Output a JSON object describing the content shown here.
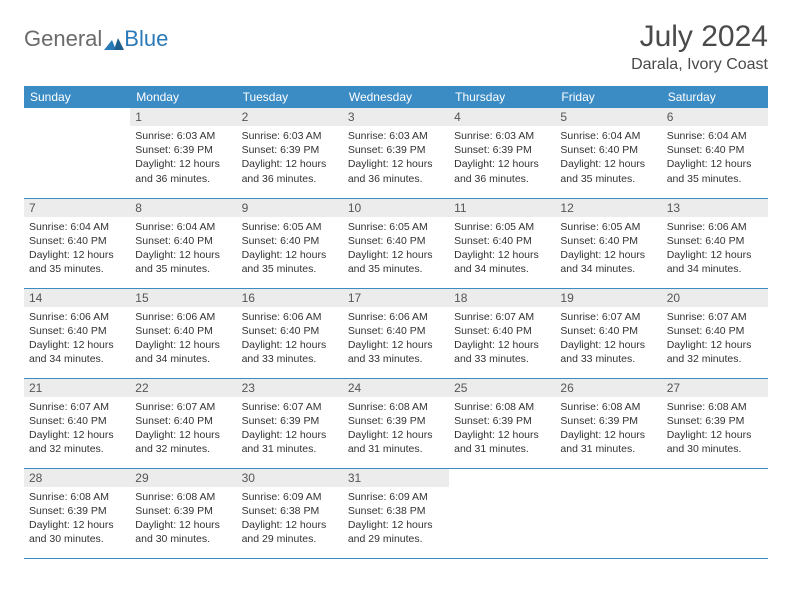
{
  "logo": {
    "text1": "General",
    "text2": "Blue"
  },
  "title": "July 2024",
  "location": "Darala, Ivory Coast",
  "colors": {
    "header_bg": "#3b8bc4",
    "header_text": "#ffffff",
    "daynum_bg": "#ececec",
    "border": "#3b8bc4",
    "logo_gray": "#6b6b6b",
    "logo_blue": "#2a7ab8"
  },
  "weekdays": [
    "Sunday",
    "Monday",
    "Tuesday",
    "Wednesday",
    "Thursday",
    "Friday",
    "Saturday"
  ],
  "weeks": [
    [
      null,
      {
        "d": "1",
        "sr": "Sunrise: 6:03 AM",
        "ss": "Sunset: 6:39 PM",
        "dl1": "Daylight: 12 hours",
        "dl2": "and 36 minutes."
      },
      {
        "d": "2",
        "sr": "Sunrise: 6:03 AM",
        "ss": "Sunset: 6:39 PM",
        "dl1": "Daylight: 12 hours",
        "dl2": "and 36 minutes."
      },
      {
        "d": "3",
        "sr": "Sunrise: 6:03 AM",
        "ss": "Sunset: 6:39 PM",
        "dl1": "Daylight: 12 hours",
        "dl2": "and 36 minutes."
      },
      {
        "d": "4",
        "sr": "Sunrise: 6:03 AM",
        "ss": "Sunset: 6:39 PM",
        "dl1": "Daylight: 12 hours",
        "dl2": "and 36 minutes."
      },
      {
        "d": "5",
        "sr": "Sunrise: 6:04 AM",
        "ss": "Sunset: 6:40 PM",
        "dl1": "Daylight: 12 hours",
        "dl2": "and 35 minutes."
      },
      {
        "d": "6",
        "sr": "Sunrise: 6:04 AM",
        "ss": "Sunset: 6:40 PM",
        "dl1": "Daylight: 12 hours",
        "dl2": "and 35 minutes."
      }
    ],
    [
      {
        "d": "7",
        "sr": "Sunrise: 6:04 AM",
        "ss": "Sunset: 6:40 PM",
        "dl1": "Daylight: 12 hours",
        "dl2": "and 35 minutes."
      },
      {
        "d": "8",
        "sr": "Sunrise: 6:04 AM",
        "ss": "Sunset: 6:40 PM",
        "dl1": "Daylight: 12 hours",
        "dl2": "and 35 minutes."
      },
      {
        "d": "9",
        "sr": "Sunrise: 6:05 AM",
        "ss": "Sunset: 6:40 PM",
        "dl1": "Daylight: 12 hours",
        "dl2": "and 35 minutes."
      },
      {
        "d": "10",
        "sr": "Sunrise: 6:05 AM",
        "ss": "Sunset: 6:40 PM",
        "dl1": "Daylight: 12 hours",
        "dl2": "and 35 minutes."
      },
      {
        "d": "11",
        "sr": "Sunrise: 6:05 AM",
        "ss": "Sunset: 6:40 PM",
        "dl1": "Daylight: 12 hours",
        "dl2": "and 34 minutes."
      },
      {
        "d": "12",
        "sr": "Sunrise: 6:05 AM",
        "ss": "Sunset: 6:40 PM",
        "dl1": "Daylight: 12 hours",
        "dl2": "and 34 minutes."
      },
      {
        "d": "13",
        "sr": "Sunrise: 6:06 AM",
        "ss": "Sunset: 6:40 PM",
        "dl1": "Daylight: 12 hours",
        "dl2": "and 34 minutes."
      }
    ],
    [
      {
        "d": "14",
        "sr": "Sunrise: 6:06 AM",
        "ss": "Sunset: 6:40 PM",
        "dl1": "Daylight: 12 hours",
        "dl2": "and 34 minutes."
      },
      {
        "d": "15",
        "sr": "Sunrise: 6:06 AM",
        "ss": "Sunset: 6:40 PM",
        "dl1": "Daylight: 12 hours",
        "dl2": "and 34 minutes."
      },
      {
        "d": "16",
        "sr": "Sunrise: 6:06 AM",
        "ss": "Sunset: 6:40 PM",
        "dl1": "Daylight: 12 hours",
        "dl2": "and 33 minutes."
      },
      {
        "d": "17",
        "sr": "Sunrise: 6:06 AM",
        "ss": "Sunset: 6:40 PM",
        "dl1": "Daylight: 12 hours",
        "dl2": "and 33 minutes."
      },
      {
        "d": "18",
        "sr": "Sunrise: 6:07 AM",
        "ss": "Sunset: 6:40 PM",
        "dl1": "Daylight: 12 hours",
        "dl2": "and 33 minutes."
      },
      {
        "d": "19",
        "sr": "Sunrise: 6:07 AM",
        "ss": "Sunset: 6:40 PM",
        "dl1": "Daylight: 12 hours",
        "dl2": "and 33 minutes."
      },
      {
        "d": "20",
        "sr": "Sunrise: 6:07 AM",
        "ss": "Sunset: 6:40 PM",
        "dl1": "Daylight: 12 hours",
        "dl2": "and 32 minutes."
      }
    ],
    [
      {
        "d": "21",
        "sr": "Sunrise: 6:07 AM",
        "ss": "Sunset: 6:40 PM",
        "dl1": "Daylight: 12 hours",
        "dl2": "and 32 minutes."
      },
      {
        "d": "22",
        "sr": "Sunrise: 6:07 AM",
        "ss": "Sunset: 6:40 PM",
        "dl1": "Daylight: 12 hours",
        "dl2": "and 32 minutes."
      },
      {
        "d": "23",
        "sr": "Sunrise: 6:07 AM",
        "ss": "Sunset: 6:39 PM",
        "dl1": "Daylight: 12 hours",
        "dl2": "and 31 minutes."
      },
      {
        "d": "24",
        "sr": "Sunrise: 6:08 AM",
        "ss": "Sunset: 6:39 PM",
        "dl1": "Daylight: 12 hours",
        "dl2": "and 31 minutes."
      },
      {
        "d": "25",
        "sr": "Sunrise: 6:08 AM",
        "ss": "Sunset: 6:39 PM",
        "dl1": "Daylight: 12 hours",
        "dl2": "and 31 minutes."
      },
      {
        "d": "26",
        "sr": "Sunrise: 6:08 AM",
        "ss": "Sunset: 6:39 PM",
        "dl1": "Daylight: 12 hours",
        "dl2": "and 31 minutes."
      },
      {
        "d": "27",
        "sr": "Sunrise: 6:08 AM",
        "ss": "Sunset: 6:39 PM",
        "dl1": "Daylight: 12 hours",
        "dl2": "and 30 minutes."
      }
    ],
    [
      {
        "d": "28",
        "sr": "Sunrise: 6:08 AM",
        "ss": "Sunset: 6:39 PM",
        "dl1": "Daylight: 12 hours",
        "dl2": "and 30 minutes."
      },
      {
        "d": "29",
        "sr": "Sunrise: 6:08 AM",
        "ss": "Sunset: 6:39 PM",
        "dl1": "Daylight: 12 hours",
        "dl2": "and 30 minutes."
      },
      {
        "d": "30",
        "sr": "Sunrise: 6:09 AM",
        "ss": "Sunset: 6:38 PM",
        "dl1": "Daylight: 12 hours",
        "dl2": "and 29 minutes."
      },
      {
        "d": "31",
        "sr": "Sunrise: 6:09 AM",
        "ss": "Sunset: 6:38 PM",
        "dl1": "Daylight: 12 hours",
        "dl2": "and 29 minutes."
      },
      null,
      null,
      null
    ]
  ]
}
